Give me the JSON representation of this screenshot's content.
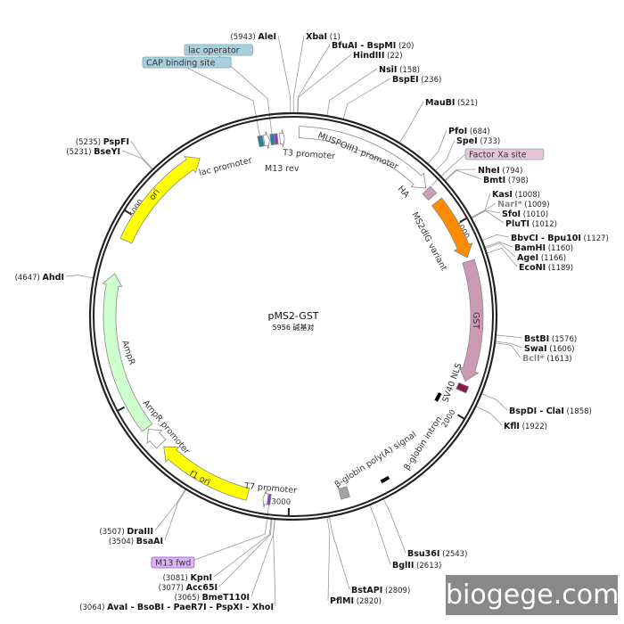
{
  "plasmid": {
    "name": "pMS2-GST",
    "length_text": "5956 碱基对",
    "length_bp": 5956
  },
  "ticks": [
    {
      "bp": 1000,
      "label": "1000"
    },
    {
      "bp": 2000,
      "label": "2000"
    },
    {
      "bp": 3000,
      "label": "3000"
    },
    {
      "bp": 4000,
      "label": "4000"
    },
    {
      "bp": 5000,
      "label": "5000"
    }
  ],
  "features": [
    {
      "name": "MUSPOIII1 promoter",
      "start": 30,
      "end": 760,
      "color": "#ffffff",
      "kind": "arrow"
    },
    {
      "name": "HA",
      "start": 770,
      "end": 815,
      "color": "#c9a0b8",
      "kind": "box"
    },
    {
      "name": "MS2dlG variant",
      "start": 850,
      "end": 1180,
      "color": "#ff8c00",
      "kind": "arrow"
    },
    {
      "name": "GST",
      "start": 1200,
      "end": 1830,
      "color": "#cc99b3",
      "kind": "arrow"
    },
    {
      "name": "SV40 NLS",
      "start": 1850,
      "end": 1885,
      "color": "#8b1a4a",
      "kind": "box"
    },
    {
      "name": "β-globin intron",
      "start": 1945,
      "end": 1995,
      "color": "#000000",
      "kind": "bar"
    },
    {
      "name": "β-globin poly(A) signal",
      "start": 2690,
      "end": 2735,
      "color": "#a0a4a8",
      "kind": "box"
    },
    {
      "name": "T7 promoter",
      "start": 3110,
      "end": 3135,
      "color": "#ffffff",
      "kind": "arrow"
    },
    {
      "name": "M13 fwd",
      "start": 3095,
      "end": 3108,
      "color": "#9933cc",
      "kind": "box"
    },
    {
      "name": "f1 ori",
      "start": 3215,
      "end": 3720,
      "color": "#ffff00",
      "kind": "arrow"
    },
    {
      "name": "AmpR promoter",
      "start": 3740,
      "end": 3840,
      "color": "#ffffff",
      "kind": "arrow"
    },
    {
      "name": "AmpR",
      "start": 3850,
      "end": 4690,
      "color": "#ccffcc",
      "kind": "arrow"
    },
    {
      "name": "ori",
      "start": 4870,
      "end": 5450,
      "color": "#ffff00",
      "kind": "arrow"
    },
    {
      "name": "CAP binding site",
      "start": 5770,
      "end": 5795,
      "color": "#2a7f96",
      "kind": "box"
    },
    {
      "name": "lac promoter",
      "start": 5800,
      "end": 5830,
      "color": "#ffffff",
      "kind": "arrow"
    },
    {
      "name": "lac operator",
      "start": 5835,
      "end": 5855,
      "color": "#2a7f96",
      "kind": "box"
    },
    {
      "name": "M13 rev",
      "start": 5857,
      "end": 5873,
      "color": "#9933cc",
      "kind": "box"
    },
    {
      "name": "T3 promoter",
      "start": 5885,
      "end": 5910,
      "color": "#ffffff",
      "kind": "arrow"
    }
  ],
  "feature_labels": {
    "lac_promoter": "lac promoter",
    "m13_rev": "M13 rev",
    "t3_promoter": "T3 promoter",
    "muspoiii1": "MUSPOIII1 promoter",
    "ha": "HA",
    "ms2dlg": "MS2dlG variant",
    "gst": "GST",
    "sv40": "SV40 NLS",
    "bglobin_intron": "β-globin intron",
    "bglobin_polya": "β-globin poly(A) signal",
    "t7": "T7 promoter",
    "f1ori": "f1 ori",
    "ampr_promoter": "AmpR promoter",
    "ampr": "AmpR",
    "ori": "ori"
  },
  "callout_boxes": [
    {
      "label": "lac operator",
      "bp": 5845,
      "color": "#a8d0dc"
    },
    {
      "label": "CAP binding site",
      "bp": 5782,
      "color": "#a8d0dc"
    },
    {
      "label": "Factor Xa site",
      "bp": 770,
      "color": "#e8c4d4"
    },
    {
      "label": "M13 fwd",
      "bp": 3100,
      "color": "#dcb4f0"
    }
  ],
  "enzymes": [
    {
      "name": "AleI",
      "pos": "(5943)",
      "bp": 5943
    },
    {
      "name": "XbaI",
      "pos": "(1)",
      "bp": 1
    },
    {
      "name": "BfuAI - BspMI",
      "pos": "(20)",
      "bp": 20
    },
    {
      "name": "HindIII",
      "pos": "(22)",
      "bp": 22
    },
    {
      "name": "NsiI",
      "pos": "(158)",
      "bp": 158
    },
    {
      "name": "BspEI",
      "pos": "(236)",
      "bp": 236
    },
    {
      "name": "MauBI",
      "pos": "(521)",
      "bp": 521
    },
    {
      "name": "PfoI",
      "pos": "(684)",
      "bp": 684
    },
    {
      "name": "SpeI",
      "pos": "(733)",
      "bp": 733
    },
    {
      "name": "NheI",
      "pos": "(794)",
      "bp": 794
    },
    {
      "name": "BmtI",
      "pos": "(798)",
      "bp": 798
    },
    {
      "name": "KasI",
      "pos": "(1008)",
      "bp": 1008
    },
    {
      "name": "NarI*",
      "pos": "(1009)",
      "bp": 1009,
      "gray": true
    },
    {
      "name": "SfoI",
      "pos": "(1010)",
      "bp": 1010
    },
    {
      "name": "PluTI",
      "pos": "(1012)",
      "bp": 1012
    },
    {
      "name": "BbvCI - Bpu10I",
      "pos": "(1127)",
      "bp": 1127
    },
    {
      "name": "BamHI",
      "pos": "(1160)",
      "bp": 1160
    },
    {
      "name": "AgeI",
      "pos": "(1166)",
      "bp": 1166
    },
    {
      "name": "EcoNI",
      "pos": "(1189)",
      "bp": 1189
    },
    {
      "name": "BstBI",
      "pos": "(1576)",
      "bp": 1576
    },
    {
      "name": "SwaI",
      "pos": "(1606)",
      "bp": 1606
    },
    {
      "name": "BclI*",
      "pos": "(1613)",
      "bp": 1613,
      "gray": true
    },
    {
      "name": "BspDI - ClaI",
      "pos": "(1858)",
      "bp": 1858
    },
    {
      "name": "KflI",
      "pos": "(1922)",
      "bp": 1922
    },
    {
      "name": "Bsu36I",
      "pos": "(2543)",
      "bp": 2543
    },
    {
      "name": "BglII",
      "pos": "(2613)",
      "bp": 2613
    },
    {
      "name": "BstAPI",
      "pos": "(2809)",
      "bp": 2809
    },
    {
      "name": "PflMI",
      "pos": "(2820)",
      "bp": 2820
    },
    {
      "name": "KpnI",
      "pos": "(3081)",
      "bp": 3081
    },
    {
      "name": "Acc65I",
      "pos": "(3077)",
      "bp": 3077
    },
    {
      "name": "BmeT110I",
      "pos": "(3065)",
      "bp": 3065
    },
    {
      "name": "AvaI - BsoBI - PaeR7I - PspXI - XhoI",
      "pos": "(3064)",
      "bp": 3064
    },
    {
      "name": "DraIII",
      "pos": "(3507)",
      "bp": 3507
    },
    {
      "name": "BsaAI",
      "pos": "(3504)",
      "bp": 3504
    },
    {
      "name": "AhdI",
      "pos": "(4647)",
      "bp": 4647
    },
    {
      "name": "PspFI",
      "pos": "(5235)",
      "bp": 5235
    },
    {
      "name": "BseYI",
      "pos": "(5231)",
      "bp": 5231
    }
  ],
  "watermark": "biogege.com"
}
